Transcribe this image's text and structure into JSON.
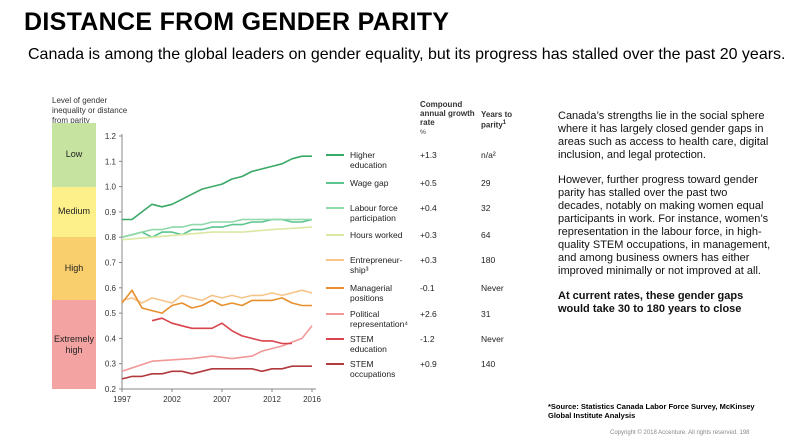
{
  "title": "DISTANCE FROM GENDER PARITY",
  "subtitle": "Canada is among the global leaders on gender equality, but its progress has stalled over the past 20 years.",
  "y_axis_title": "Level of gender inequality or distance from parity",
  "bands": [
    {
      "label": "Low",
      "from": 1.0,
      "to": 1.25,
      "color": "#c6e3a0"
    },
    {
      "label": "Medium",
      "from": 0.8,
      "to": 1.0,
      "color": "#fdf08a"
    },
    {
      "label": "High",
      "from": 0.55,
      "to": 0.8,
      "color": "#f9cf6d"
    },
    {
      "label": "Extremely high",
      "from": 0.2,
      "to": 0.55,
      "color": "#f4a3a3"
    }
  ],
  "table_headers": {
    "rate": "Compound annual growth rate",
    "rate_unit": "%",
    "years": "Years to parity",
    "years_mark": "1"
  },
  "chart_data": {
    "type": "line",
    "xlim": [
      1997,
      2016
    ],
    "ylim": [
      0.2,
      1.2
    ],
    "x_ticks": [
      "1997",
      "2002",
      "2007",
      "2012",
      "2016"
    ],
    "y_ticks": [
      "0.2",
      "0.3",
      "0.4",
      "0.5",
      "0.6",
      "0.7",
      "0.8",
      "0.9",
      "1.0",
      "1.1",
      "1.2"
    ],
    "series": [
      {
        "name": "Higher education",
        "color": "#3aa866",
        "rate": "+1.3",
        "years": "n/a²",
        "x": [
          1997,
          1998,
          1999,
          2000,
          2001,
          2002,
          2003,
          2004,
          2005,
          2006,
          2007,
          2008,
          2009,
          2010,
          2011,
          2012,
          2013,
          2014,
          2015,
          2016
        ],
        "values": [
          0.87,
          0.87,
          0.9,
          0.93,
          0.92,
          0.93,
          0.95,
          0.97,
          0.99,
          1.0,
          1.01,
          1.03,
          1.04,
          1.06,
          1.07,
          1.08,
          1.09,
          1.11,
          1.12,
          1.12
        ]
      },
      {
        "name": "Wage gap",
        "color": "#5cc48f",
        "rate": "+0.5",
        "years": "29",
        "x": [
          1997,
          1998,
          1999,
          2000,
          2001,
          2002,
          2003,
          2004,
          2005,
          2006,
          2007,
          2008,
          2009,
          2010,
          2011,
          2012,
          2013,
          2014,
          2015,
          2016
        ],
        "values": [
          0.8,
          0.81,
          0.82,
          0.8,
          0.82,
          0.82,
          0.81,
          0.83,
          0.83,
          0.84,
          0.84,
          0.85,
          0.85,
          0.86,
          0.86,
          0.87,
          0.87,
          0.86,
          0.86,
          0.87
        ]
      },
      {
        "name": "Labour force participation",
        "color": "#8fd8a8",
        "rate": "+0.4",
        "years": "32",
        "x": [
          1997,
          1998,
          1999,
          2000,
          2001,
          2002,
          2003,
          2004,
          2005,
          2006,
          2007,
          2008,
          2009,
          2010,
          2011,
          2012,
          2013,
          2014,
          2015,
          2016
        ],
        "values": [
          0.8,
          0.81,
          0.82,
          0.83,
          0.83,
          0.84,
          0.84,
          0.85,
          0.85,
          0.86,
          0.86,
          0.86,
          0.87,
          0.87,
          0.87,
          0.87,
          0.87,
          0.87,
          0.87,
          0.87
        ]
      },
      {
        "name": "Hours worked",
        "color": "#d9e8a3",
        "rate": "+0.3",
        "years": "64",
        "x": [
          1997,
          2000,
          2003,
          2006,
          2009,
          2012,
          2016
        ],
        "values": [
          0.79,
          0.8,
          0.81,
          0.82,
          0.82,
          0.83,
          0.84
        ]
      },
      {
        "name": "Entrepreneur-ship³",
        "color": "#f7c48a",
        "rate": "+0.3",
        "years": "180",
        "x": [
          1997,
          1998,
          1999,
          2000,
          2001,
          2002,
          2003,
          2004,
          2005,
          2006,
          2007,
          2008,
          2009,
          2010,
          2011,
          2012,
          2013,
          2014,
          2015,
          2016
        ],
        "values": [
          0.55,
          0.56,
          0.54,
          0.56,
          0.55,
          0.54,
          0.57,
          0.56,
          0.55,
          0.57,
          0.56,
          0.57,
          0.56,
          0.57,
          0.57,
          0.58,
          0.57,
          0.58,
          0.59,
          0.58
        ]
      },
      {
        "name": "Managerial positions",
        "color": "#e8902e",
        "rate": "-0.1",
        "years": "Never",
        "x": [
          1997,
          1998,
          1999,
          2000,
          2001,
          2002,
          2003,
          2004,
          2005,
          2006,
          2007,
          2008,
          2009,
          2010,
          2011,
          2012,
          2013,
          2014,
          2015,
          2016
        ],
        "values": [
          0.54,
          0.59,
          0.52,
          0.51,
          0.5,
          0.53,
          0.54,
          0.52,
          0.53,
          0.55,
          0.53,
          0.54,
          0.53,
          0.55,
          0.55,
          0.55,
          0.56,
          0.54,
          0.53,
          0.53
        ]
      },
      {
        "name": "Political representation⁴",
        "color": "#f29898",
        "rate": "+2.6",
        "years": "31",
        "x": [
          1997,
          2000,
          2004,
          2006,
          2008,
          2010,
          2011,
          2013,
          2015,
          2016
        ],
        "values": [
          0.27,
          0.31,
          0.32,
          0.33,
          0.32,
          0.33,
          0.35,
          0.37,
          0.4,
          0.45
        ]
      },
      {
        "name": "STEM education",
        "color": "#d9434b",
        "rate": "-1.2",
        "years": "Never",
        "x": [
          2000,
          2001,
          2002,
          2003,
          2004,
          2005,
          2006,
          2007,
          2008,
          2009,
          2010,
          2011,
          2012,
          2013,
          2014
        ],
        "values": [
          0.47,
          0.48,
          0.46,
          0.45,
          0.44,
          0.44,
          0.44,
          0.46,
          0.43,
          0.41,
          0.4,
          0.39,
          0.39,
          0.38,
          0.38
        ]
      },
      {
        "name": "STEM occupations",
        "color": "#b23a3f",
        "rate": "+0.9",
        "years": "140",
        "x": [
          1997,
          1998,
          1999,
          2000,
          2001,
          2002,
          2003,
          2004,
          2005,
          2006,
          2007,
          2008,
          2009,
          2010,
          2011,
          2012,
          2013,
          2014,
          2015,
          2016
        ],
        "values": [
          0.24,
          0.25,
          0.25,
          0.26,
          0.26,
          0.27,
          0.27,
          0.26,
          0.27,
          0.28,
          0.28,
          0.28,
          0.28,
          0.28,
          0.27,
          0.28,
          0.28,
          0.29,
          0.29,
          0.29
        ]
      }
    ]
  },
  "right_text": {
    "p1": "Canada’s strengths lie in the social sphere where it has largely closed gender gaps in areas such as access to health care, digital inclusion, and legal protection.",
    "p2": "However, further progress toward gender parity has stalled over the past two decades, notably on making women equal participants in work. For instance, women’s representation in the labour force, in high-quality STEM occupations, in management, and among business owners has either improved minimally or not improved at all.",
    "p3": "At current rates, these gender gaps would take 30 to 180 years to close"
  },
  "source": "*Source: Statistics Canada Labor Force Survey, McKinsey Global Institute Analysis",
  "footer": "Copyright © 2018 Accenture. All rights reserved.   198"
}
